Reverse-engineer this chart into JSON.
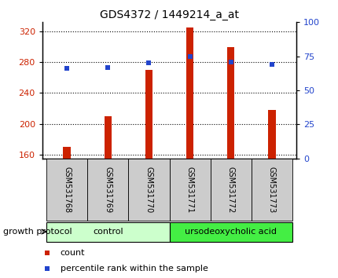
{
  "title": "GDS4372 / 1449214_a_at",
  "samples": [
    "GSM531768",
    "GSM531769",
    "GSM531770",
    "GSM531771",
    "GSM531772",
    "GSM531773"
  ],
  "count_values": [
    170,
    210,
    270,
    325,
    300,
    218
  ],
  "percentile_values": [
    66,
    67,
    70,
    75,
    71,
    69
  ],
  "ymin": 155,
  "ymax": 332,
  "yticks_left": [
    160,
    200,
    240,
    280,
    320
  ],
  "yticks_right": [
    0,
    25,
    50,
    75,
    100
  ],
  "bar_color": "#cc2200",
  "dot_color": "#2244cc",
  "group1_label": "control",
  "group2_label": "ursodeoxycholic acid",
  "group1_color": "#ccffcc",
  "group2_color": "#44ee44",
  "group1_indices": [
    0,
    1,
    2
  ],
  "group2_indices": [
    3,
    4,
    5
  ],
  "legend_bar_label": "count",
  "legend_dot_label": "percentile rank within the sample",
  "protocol_label": "growth protocol",
  "xlabel_bg": "#cccccc"
}
